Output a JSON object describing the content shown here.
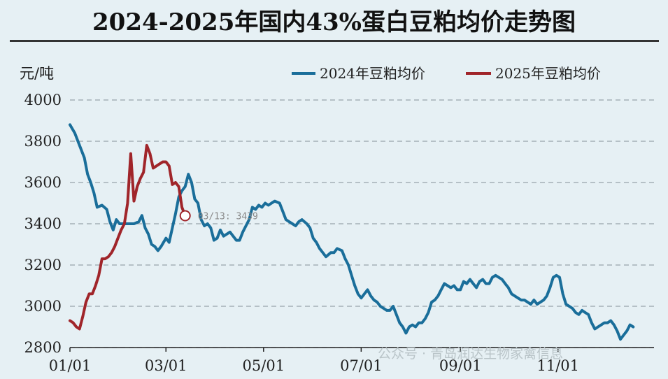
{
  "title": "2024-2025年国内43%蛋白豆粕均价走势图",
  "watermark": "公众号 · 青岛润达生物家禽信息",
  "chart_data": {
    "type": "line",
    "title": "2024-2025年国内43%蛋白豆粕均价走势图",
    "ylabel": "元/吨",
    "xlabel": "",
    "ylim": [
      2800,
      4000
    ],
    "yticks": [
      2800,
      3000,
      3200,
      3400,
      3600,
      3800,
      4000
    ],
    "xlim": [
      0,
      365
    ],
    "xticks": [
      {
        "label": "01/01",
        "day": 0
      },
      {
        "label": "03/01",
        "day": 60
      },
      {
        "label": "05/01",
        "day": 121
      },
      {
        "label": "07/01",
        "day": 182
      },
      {
        "label": "09/01",
        "day": 244
      },
      {
        "label": "11/01",
        "day": 305
      }
    ],
    "grid": "horizontal dashed",
    "legend_position": "top-right",
    "annotation": {
      "text": "03/13: 3439",
      "day": 72,
      "value": 3439
    },
    "series": [
      {
        "name": "2024年豆粕均价",
        "color": "#1a6e9a",
        "points": [
          [
            0,
            3880
          ],
          [
            3,
            3840
          ],
          [
            6,
            3780
          ],
          [
            9,
            3720
          ],
          [
            11,
            3640
          ],
          [
            13,
            3600
          ],
          [
            15,
            3550
          ],
          [
            17,
            3480
          ],
          [
            20,
            3490
          ],
          [
            23,
            3470
          ],
          [
            25,
            3410
          ],
          [
            27,
            3370
          ],
          [
            29,
            3420
          ],
          [
            31,
            3400
          ],
          [
            34,
            3400
          ],
          [
            37,
            3400
          ],
          [
            40,
            3400
          ],
          [
            43,
            3410
          ],
          [
            45,
            3440
          ],
          [
            47,
            3380
          ],
          [
            49,
            3350
          ],
          [
            51,
            3300
          ],
          [
            53,
            3290
          ],
          [
            55,
            3270
          ],
          [
            57,
            3290
          ],
          [
            60,
            3330
          ],
          [
            62,
            3310
          ],
          [
            64,
            3380
          ],
          [
            66,
            3450
          ],
          [
            68,
            3530
          ],
          [
            70,
            3560
          ],
          [
            72,
            3580
          ],
          [
            74,
            3640
          ],
          [
            76,
            3600
          ],
          [
            78,
            3520
          ],
          [
            80,
            3500
          ],
          [
            82,
            3420
          ],
          [
            84,
            3390
          ],
          [
            86,
            3400
          ],
          [
            88,
            3380
          ],
          [
            90,
            3320
          ],
          [
            92,
            3330
          ],
          [
            94,
            3370
          ],
          [
            96,
            3340
          ],
          [
            98,
            3350
          ],
          [
            100,
            3360
          ],
          [
            102,
            3340
          ],
          [
            104,
            3320
          ],
          [
            106,
            3320
          ],
          [
            108,
            3360
          ],
          [
            110,
            3390
          ],
          [
            112,
            3420
          ],
          [
            114,
            3480
          ],
          [
            116,
            3470
          ],
          [
            118,
            3490
          ],
          [
            120,
            3480
          ],
          [
            122,
            3500
          ],
          [
            124,
            3490
          ],
          [
            126,
            3500
          ],
          [
            128,
            3510
          ],
          [
            131,
            3500
          ],
          [
            133,
            3460
          ],
          [
            135,
            3420
          ],
          [
            137,
            3410
          ],
          [
            139,
            3400
          ],
          [
            141,
            3390
          ],
          [
            143,
            3410
          ],
          [
            145,
            3420
          ],
          [
            148,
            3400
          ],
          [
            150,
            3380
          ],
          [
            152,
            3330
          ],
          [
            154,
            3310
          ],
          [
            156,
            3280
          ],
          [
            158,
            3260
          ],
          [
            160,
            3240
          ],
          [
            163,
            3260
          ],
          [
            165,
            3260
          ],
          [
            167,
            3280
          ],
          [
            170,
            3270
          ],
          [
            172,
            3230
          ],
          [
            174,
            3200
          ],
          [
            176,
            3150
          ],
          [
            178,
            3100
          ],
          [
            180,
            3060
          ],
          [
            182,
            3040
          ],
          [
            184,
            3060
          ],
          [
            186,
            3080
          ],
          [
            188,
            3050
          ],
          [
            190,
            3030
          ],
          [
            192,
            3020
          ],
          [
            194,
            3000
          ],
          [
            196,
            2990
          ],
          [
            198,
            2980
          ],
          [
            200,
            2980
          ],
          [
            202,
            3000
          ],
          [
            204,
            2960
          ],
          [
            206,
            2920
          ],
          [
            208,
            2900
          ],
          [
            210,
            2870
          ],
          [
            212,
            2900
          ],
          [
            214,
            2910
          ],
          [
            216,
            2900
          ],
          [
            218,
            2920
          ],
          [
            220,
            2920
          ],
          [
            222,
            2940
          ],
          [
            224,
            2970
          ],
          [
            226,
            3020
          ],
          [
            228,
            3030
          ],
          [
            230,
            3050
          ],
          [
            232,
            3080
          ],
          [
            234,
            3110
          ],
          [
            236,
            3100
          ],
          [
            238,
            3090
          ],
          [
            240,
            3100
          ],
          [
            242,
            3080
          ],
          [
            244,
            3080
          ],
          [
            246,
            3120
          ],
          [
            248,
            3110
          ],
          [
            250,
            3130
          ],
          [
            252,
            3110
          ],
          [
            254,
            3090
          ],
          [
            256,
            3120
          ],
          [
            258,
            3130
          ],
          [
            260,
            3110
          ],
          [
            262,
            3110
          ],
          [
            264,
            3140
          ],
          [
            266,
            3150
          ],
          [
            268,
            3140
          ],
          [
            270,
            3130
          ],
          [
            272,
            3110
          ],
          [
            274,
            3090
          ],
          [
            276,
            3060
          ],
          [
            278,
            3050
          ],
          [
            280,
            3040
          ],
          [
            282,
            3030
          ],
          [
            284,
            3030
          ],
          [
            286,
            3020
          ],
          [
            288,
            3010
          ],
          [
            290,
            3030
          ],
          [
            292,
            3010
          ],
          [
            294,
            3020
          ],
          [
            296,
            3030
          ],
          [
            298,
            3050
          ],
          [
            300,
            3090
          ],
          [
            302,
            3140
          ],
          [
            304,
            3150
          ],
          [
            306,
            3140
          ],
          [
            308,
            3060
          ],
          [
            310,
            3010
          ],
          [
            312,
            3000
          ],
          [
            314,
            2990
          ],
          [
            316,
            2970
          ],
          [
            318,
            2960
          ],
          [
            320,
            2980
          ],
          [
            322,
            2970
          ],
          [
            324,
            2960
          ],
          [
            326,
            2920
          ],
          [
            328,
            2890
          ],
          [
            330,
            2900
          ],
          [
            332,
            2910
          ],
          [
            334,
            2920
          ],
          [
            336,
            2920
          ],
          [
            338,
            2930
          ],
          [
            340,
            2910
          ],
          [
            342,
            2880
          ],
          [
            344,
            2840
          ],
          [
            346,
            2860
          ],
          [
            348,
            2880
          ],
          [
            350,
            2910
          ],
          [
            352,
            2900
          ]
        ]
      },
      {
        "name": "2025年豆粕均价",
        "color": "#a0252a",
        "points": [
          [
            0,
            2930
          ],
          [
            2,
            2920
          ],
          [
            4,
            2900
          ],
          [
            6,
            2890
          ],
          [
            8,
            2950
          ],
          [
            10,
            3020
          ],
          [
            12,
            3060
          ],
          [
            14,
            3060
          ],
          [
            16,
            3100
          ],
          [
            18,
            3150
          ],
          [
            20,
            3230
          ],
          [
            22,
            3230
          ],
          [
            24,
            3240
          ],
          [
            26,
            3260
          ],
          [
            28,
            3290
          ],
          [
            30,
            3330
          ],
          [
            32,
            3370
          ],
          [
            34,
            3400
          ],
          [
            36,
            3500
          ],
          [
            38,
            3740
          ],
          [
            40,
            3510
          ],
          [
            42,
            3580
          ],
          [
            44,
            3620
          ],
          [
            46,
            3650
          ],
          [
            48,
            3780
          ],
          [
            50,
            3740
          ],
          [
            52,
            3670
          ],
          [
            54,
            3680
          ],
          [
            56,
            3690
          ],
          [
            58,
            3700
          ],
          [
            60,
            3700
          ],
          [
            62,
            3680
          ],
          [
            64,
            3590
          ],
          [
            66,
            3600
          ],
          [
            68,
            3580
          ],
          [
            70,
            3480
          ],
          [
            72,
            3439
          ]
        ]
      }
    ]
  }
}
